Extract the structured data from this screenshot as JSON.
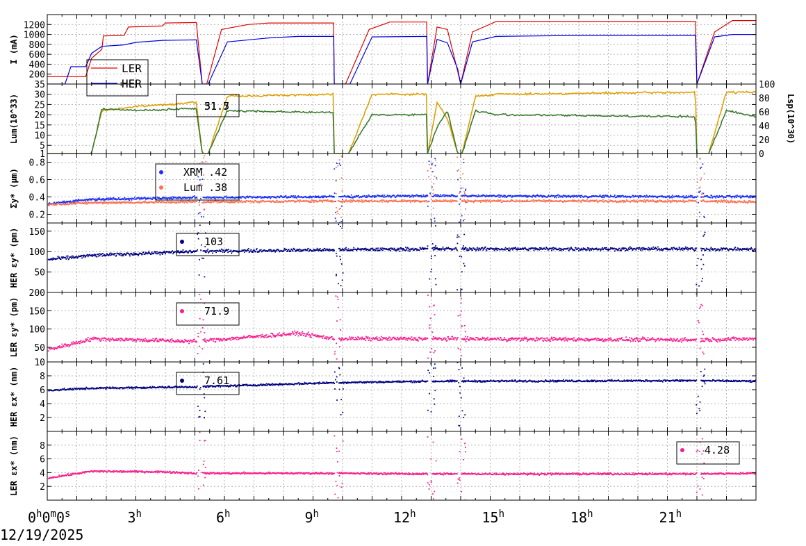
{
  "date_label": "12/19/2025",
  "x_axis": {
    "range_hours": [
      0,
      24
    ],
    "ticks": [
      {
        "h": 0,
        "label": "0h0m0s"
      },
      {
        "h": 3,
        "label": "3h"
      },
      {
        "h": 6,
        "label": "6h"
      },
      {
        "h": 9,
        "label": "9h"
      },
      {
        "h": 12,
        "label": "12h"
      },
      {
        "h": 15,
        "label": "15h"
      },
      {
        "h": 18,
        "label": "18h"
      },
      {
        "h": 21,
        "label": "21h"
      }
    ]
  },
  "colors": {
    "ler_current": "#e00000",
    "her_current": "#0000e0",
    "lum": "#e0a000",
    "lsp": "#3a7a30",
    "xrm": "#1a30ff",
    "lum_size": "#ff7050",
    "her_emit": "#000080",
    "ler_emit": "#ff1a8c",
    "grid": "#a0a0a0"
  },
  "chart_data": [
    {
      "type": "line",
      "ylabel": "I (mA)",
      "ylim": [
        0,
        1400
      ],
      "yticks": [
        200,
        400,
        600,
        800,
        1000,
        1200
      ],
      "legend": {
        "placement": "bottom-left",
        "entries": [
          "LER",
          "HER"
        ]
      },
      "series": [
        {
          "name": "LER",
          "x": [
            0,
            1.3,
            1.5,
            1.85,
            1.9,
            2.6,
            2.75,
            3.9,
            4.0,
            5.05,
            5.25,
            5.4,
            5.9,
            6.8,
            7.5,
            9.7,
            9.72,
            10.1,
            10.9,
            11.6,
            12.85,
            12.88,
            13.2,
            13.55,
            13.9,
            14.0,
            14.4,
            15.2,
            21.95,
            22.0,
            22.6,
            23.2,
            24
          ],
          "y": [
            150,
            150,
            520,
            700,
            970,
            980,
            1150,
            1170,
            1230,
            1240,
            0,
            0,
            1100,
            1200,
            1230,
            1230,
            0,
            0,
            1100,
            1250,
            1250,
            0,
            1150,
            1100,
            250,
            0,
            1050,
            1260,
            1260,
            0,
            1050,
            1280,
            1280
          ]
        },
        {
          "name": "HER",
          "x": [
            0,
            0.6,
            0.8,
            1.3,
            1.5,
            1.85,
            2.6,
            3.0,
            3.9,
            5.05,
            5.25,
            5.45,
            6.1,
            7.5,
            8.5,
            9.7,
            9.72,
            10.25,
            11.0,
            12.85,
            12.88,
            13.2,
            13.55,
            13.9,
            14.0,
            14.4,
            15.2,
            18.0,
            21.95,
            22.0,
            22.6,
            23.2,
            24
          ],
          "y": [
            0,
            0,
            350,
            350,
            620,
            760,
            790,
            840,
            880,
            890,
            0,
            0,
            850,
            930,
            960,
            960,
            0,
            0,
            950,
            960,
            0,
            900,
            830,
            300,
            0,
            850,
            960,
            980,
            980,
            0,
            950,
            1000,
            1000
          ]
        }
      ]
    },
    {
      "type": "line",
      "ylabel": "Lum(10^33)",
      "ylim": [
        1,
        35
      ],
      "yticks": [
        1,
        5,
        10,
        15,
        20,
        25,
        30,
        35
      ],
      "y2label": "Lsp(10^30)",
      "y2lim": [
        0,
        100
      ],
      "y2ticks": [
        0,
        20,
        40,
        60,
        80,
        100
      ],
      "legend": {
        "placement": "top-left",
        "entries": [
          "31.7",
          "51.5"
        ]
      },
      "series": [
        {
          "name": "Lum",
          "x": [
            0,
            1.5,
            1.85,
            3.0,
            5.05,
            5.25,
            5.45,
            6.1,
            9.7,
            9.72,
            10.2,
            11.0,
            12.85,
            12.88,
            13.2,
            13.55,
            13.9,
            14.05,
            14.5,
            15.2,
            21.95,
            22.0,
            22.4,
            23.0,
            24
          ],
          "y": [
            1,
            1,
            22,
            24,
            26,
            1,
            1,
            29,
            30,
            1,
            1,
            30,
            30,
            1,
            26,
            18,
            1,
            1,
            29,
            30,
            31,
            1,
            1,
            31,
            31
          ]
        },
        {
          "name": "Lsp",
          "x": [
            0,
            1.5,
            1.85,
            3.0,
            5.05,
            5.25,
            5.45,
            6.1,
            9.7,
            9.72,
            10.2,
            11.0,
            12.85,
            12.88,
            13.2,
            13.55,
            13.9,
            14.05,
            14.5,
            15.2,
            21.95,
            22.0,
            22.4,
            23.0,
            24
          ],
          "y": [
            1,
            1,
            23,
            22,
            23,
            1,
            1,
            22,
            21,
            1,
            1,
            20,
            20,
            1,
            14,
            22,
            1,
            1,
            22,
            20,
            19,
            1,
            1,
            22,
            19
          ]
        }
      ]
    },
    {
      "type": "scatter",
      "ylabel": "Σy* (μm)",
      "ylim": [
        0.1,
        0.9
      ],
      "yticks": [
        0.2,
        0.4,
        0.6,
        0.8
      ],
      "legend": {
        "placement": "top-left",
        "entries": [
          "XRM .42",
          "Lum .38"
        ]
      },
      "series": [
        {
          "name": "XRM",
          "level": [
            [
              0,
              0.33
            ],
            [
              1.5,
              0.38
            ],
            [
              5.0,
              0.4
            ],
            [
              9.7,
              0.41
            ],
            [
              12.8,
              0.42
            ],
            [
              21.9,
              0.41
            ],
            [
              24,
              0.41
            ]
          ]
        },
        {
          "name": "Lum",
          "level": [
            [
              0,
              0.32
            ],
            [
              1.5,
              0.34
            ],
            [
              5.0,
              0.35
            ],
            [
              9.7,
              0.36
            ],
            [
              12.8,
              0.36
            ],
            [
              21.9,
              0.36
            ],
            [
              24,
              0.35
            ]
          ]
        }
      ]
    },
    {
      "type": "scatter",
      "ylabel": "HER εy* (pm)",
      "ylim": [
        0,
        170
      ],
      "yticks": [
        50,
        100,
        150
      ],
      "legend": {
        "placement": "top-left",
        "entries": [
          "103"
        ]
      },
      "series": [
        {
          "name": "HER εy*",
          "level": [
            [
              0,
              82
            ],
            [
              1.5,
              92
            ],
            [
              5.0,
              102
            ],
            [
              9.7,
              106
            ],
            [
              12.8,
              108
            ],
            [
              21.9,
              108
            ],
            [
              24,
              107
            ]
          ]
        }
      ]
    },
    {
      "type": "scatter",
      "ylabel": "LER εy* (pm)",
      "ylim": [
        10,
        200
      ],
      "yticks": [
        10,
        50,
        100,
        150,
        200
      ],
      "legend": {
        "placement": "top-left",
        "entries": [
          "71.9"
        ]
      },
      "series": [
        {
          "name": "LER εy*",
          "level": [
            [
              0,
              45
            ],
            [
              1.5,
              75
            ],
            [
              5.0,
              68
            ],
            [
              8.5,
              90
            ],
            [
              9.7,
              75
            ],
            [
              12.8,
              75
            ],
            [
              21.9,
              72
            ],
            [
              24,
              75
            ]
          ]
        }
      ]
    },
    {
      "type": "scatter",
      "ylabel": "HER εx* (nm)",
      "ylim": [
        0,
        10
      ],
      "yticks": [
        2,
        4,
        6,
        8
      ],
      "legend": {
        "placement": "top-left",
        "entries": [
          "7.61"
        ]
      },
      "series": [
        {
          "name": "HER εx*",
          "level": [
            [
              0,
              6.0
            ],
            [
              1.5,
              6.3
            ],
            [
              5.0,
              6.5
            ],
            [
              9.7,
              7.1
            ],
            [
              12.8,
              7.3
            ],
            [
              21.9,
              7.4
            ],
            [
              24,
              7.3
            ]
          ]
        }
      ]
    },
    {
      "type": "scatter",
      "ylabel": "LER εx* (nm)",
      "ylim": [
        0,
        10
      ],
      "yticks": [
        2,
        4,
        6,
        8
      ],
      "legend": {
        "placement": "top-right",
        "entries": [
          "4.28"
        ]
      },
      "series": [
        {
          "name": "LER εx*",
          "level": [
            [
              0,
              3.3
            ],
            [
              1.5,
              4.3
            ],
            [
              4.0,
              4.2
            ],
            [
              5.0,
              4.0
            ],
            [
              9.7,
              4.0
            ],
            [
              12.8,
              3.9
            ],
            [
              21.9,
              3.9
            ],
            [
              24,
              4.0
            ]
          ]
        }
      ]
    }
  ]
}
